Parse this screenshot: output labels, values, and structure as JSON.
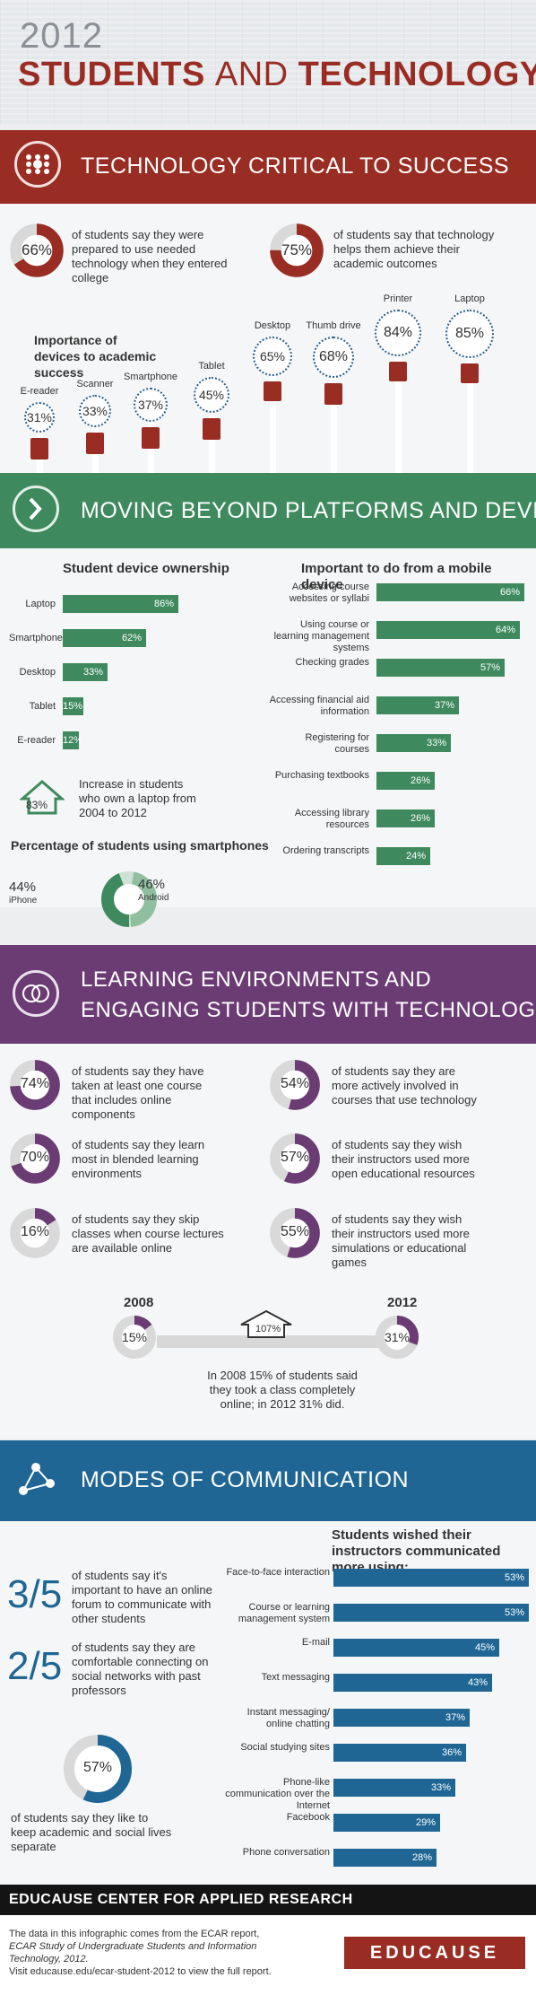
{
  "header": {
    "year": "2012",
    "title_bold_1": "STUDENTS",
    "title_light": "AND",
    "title_bold_2": "TECHNOLOGY"
  },
  "sections": {
    "s1": "TECHNOLOGY CRITICAL TO SUCCESS",
    "s2": "MOVING BEYOND PLATFORMS AND DEVICES",
    "s3_line1": "LEARNING ENVIRONMENTS AND",
    "s3_line2": "ENGAGING STUDENTS WITH TECHNOLOGY",
    "s4": "MODES OF COMMUNICATION"
  },
  "colors": {
    "red": "#9a2d23",
    "green": "#3e8a5e",
    "purple": "#6b3b74",
    "blue": "#1f6694"
  },
  "s1": {
    "stats": [
      {
        "pct": "66%",
        "value": 66,
        "text": "of students say they were prepared to use needed technology when they entered college"
      },
      {
        "pct": "75%",
        "value": 75,
        "text": "of students say that technology helps them achieve their academic outcomes"
      }
    ],
    "devices_title": "Importance of devices to academic success",
    "devices": [
      {
        "name": "E-reader",
        "pct": "31%",
        "icon": "ereader-icon"
      },
      {
        "name": "Scanner",
        "pct": "33%",
        "icon": "scanner-icon"
      },
      {
        "name": "Smartphone",
        "pct": "37%",
        "icon": "smartphone-icon"
      },
      {
        "name": "Tablet",
        "pct": "45%",
        "icon": "tablet-icon"
      },
      {
        "name": "Desktop",
        "pct": "65%",
        "icon": "desktop-icon"
      },
      {
        "name": "Thumb drive",
        "pct": "68%",
        "icon": "thumb-drive-icon"
      },
      {
        "name": "Printer",
        "pct": "84%",
        "icon": "printer-icon"
      },
      {
        "name": "Laptop",
        "pct": "85%",
        "icon": "laptop-icon"
      }
    ]
  },
  "s2": {
    "ownership_title": "Student device ownership",
    "ownership": [
      {
        "label": "Laptop",
        "value": 86,
        "pct": "86%"
      },
      {
        "label": "Smartphone",
        "value": 62,
        "pct": "62%"
      },
      {
        "label": "Desktop",
        "value": 33,
        "pct": "33%"
      },
      {
        "label": "Tablet",
        "value": 15,
        "pct": "15%"
      },
      {
        "label": "E-reader",
        "value": 12,
        "pct": "12%"
      }
    ],
    "increase_pct": "83%",
    "increase_text": "Increase in students who own a laptop from 2004 to 2012",
    "smartphone_title": "Percentage of students using smartphones",
    "iphone_pct": "44%",
    "iphone": "iPhone",
    "android_pct": "46%",
    "android": "Android",
    "mobile_title": "Important to do from a mobile device",
    "mobile": [
      {
        "label": "Accessing course websites or syllabi",
        "value": 66,
        "pct": "66%"
      },
      {
        "label": "Using course or learning management systems",
        "value": 64,
        "pct": "64%"
      },
      {
        "label": "Checking grades",
        "value": 57,
        "pct": "57%"
      },
      {
        "label": "Accessing financial aid information",
        "value": 37,
        "pct": "37%"
      },
      {
        "label": "Registering for courses",
        "value": 33,
        "pct": "33%"
      },
      {
        "label": "Purchasing textbooks",
        "value": 26,
        "pct": "26%"
      },
      {
        "label": "Accessing library resources",
        "value": 26,
        "pct": "26%"
      },
      {
        "label": "Ordering transcripts",
        "value": 24,
        "pct": "24%"
      }
    ]
  },
  "s3": {
    "stats": [
      {
        "pct": "74%",
        "value": 74,
        "text": "of students say they have taken at least one course that includes online components"
      },
      {
        "pct": "54%",
        "value": 54,
        "text": "of students say they are more actively involved in courses that use technology"
      },
      {
        "pct": "70%",
        "value": 70,
        "text": "of students say they learn most in blended learning environments"
      },
      {
        "pct": "57%",
        "value": 57,
        "text": "of students say they wish their instructors used more open educational resources"
      },
      {
        "pct": "16%",
        "value": 16,
        "text": "of students say they skip classes when course lectures are available online"
      },
      {
        "pct": "55%",
        "value": 55,
        "text": "of students say they wish their instructors used more simulations or educational games"
      }
    ],
    "year_a": "2008",
    "year_b": "2012",
    "pct_a": "15%",
    "pct_b": "31%",
    "growth": "107%",
    "online_text": "In 2008 15% of students said they took a class completely online; in 2012 31% did."
  },
  "s4": {
    "frac1": "3/5",
    "frac1_text": "of students say it's important to have an online forum to communicate with other students",
    "frac2": "2/5",
    "frac2_text": "of students say they are comfortable connecting on social networks with past professors",
    "pct57": "57%",
    "pct57_text": "of students say they like to keep academic and social lives separate",
    "comm_title": "Students wished their instructors communicated more using:",
    "comm": [
      {
        "label": "Face-to-face interaction",
        "value": 53,
        "pct": "53%"
      },
      {
        "label": "Course or learning management system",
        "value": 53,
        "pct": "53%"
      },
      {
        "label": "E-mail",
        "value": 45,
        "pct": "45%"
      },
      {
        "label": "Text messaging",
        "value": 43,
        "pct": "43%"
      },
      {
        "label": "Instant messaging/ online chatting",
        "value": 37,
        "pct": "37%"
      },
      {
        "label": "Social studying sites",
        "value": 36,
        "pct": "36%"
      },
      {
        "label": "Phone-like communication over the Internet",
        "value": 33,
        "pct": "33%"
      },
      {
        "label": "Facebook",
        "value": 29,
        "pct": "29%"
      },
      {
        "label": "Phone conversation",
        "value": 28,
        "pct": "28%"
      }
    ]
  },
  "footer": {
    "title": "EDUCAUSE CENTER FOR APPLIED RESEARCH",
    "line1": "The data in this infographic comes from the ECAR report,",
    "line2": "ECAR Study of Undergraduate Students and Information Technology, 2012.",
    "line3": "Visit educause.edu/ecar-student-2012 to view the full report.",
    "logo": "EDUCAUSE"
  }
}
